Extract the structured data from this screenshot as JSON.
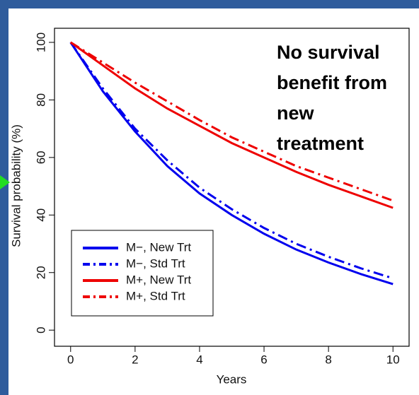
{
  "chart_data": {
    "type": "line",
    "xlabel": "Years",
    "ylabel": "Survival probability (%)",
    "annotation": [
      "No survival",
      "benefit from",
      "new",
      "treatment"
    ],
    "x": [
      0,
      1,
      2,
      3,
      4,
      5,
      6,
      7,
      8,
      9,
      10
    ],
    "series": [
      {
        "name": "M−, New Trt",
        "color": "#0000ee",
        "dash": "solid",
        "values": [
          100,
          83,
          69,
          57,
          47.5,
          40,
          33.5,
          28,
          23.5,
          19.5,
          16
        ]
      },
      {
        "name": "M−, Std Trt",
        "color": "#0000ee",
        "dash": "dashdot",
        "values": [
          100,
          84,
          70,
          59,
          49.5,
          42,
          35.5,
          30,
          25.5,
          21.5,
          18
        ]
      },
      {
        "name": "M+, New Trt",
        "color": "#ee0000",
        "dash": "solid",
        "values": [
          100,
          92,
          84,
          77,
          71,
          65,
          60,
          55,
          50.5,
          46.5,
          42.5
        ]
      },
      {
        "name": "M+, Std Trt",
        "color": "#ee0000",
        "dash": "dashdot",
        "values": [
          100,
          93,
          86,
          79.5,
          73,
          67,
          62,
          57,
          53,
          49,
          45
        ]
      }
    ],
    "xlim": [
      -0.5,
      10.5
    ],
    "ylim": [
      -5.6,
      104.9
    ],
    "xticks": [
      0,
      2,
      4,
      6,
      8,
      10
    ],
    "yticks": [
      0,
      20,
      40,
      60,
      80,
      100
    ],
    "grid": false,
    "legend": "lower-left"
  }
}
